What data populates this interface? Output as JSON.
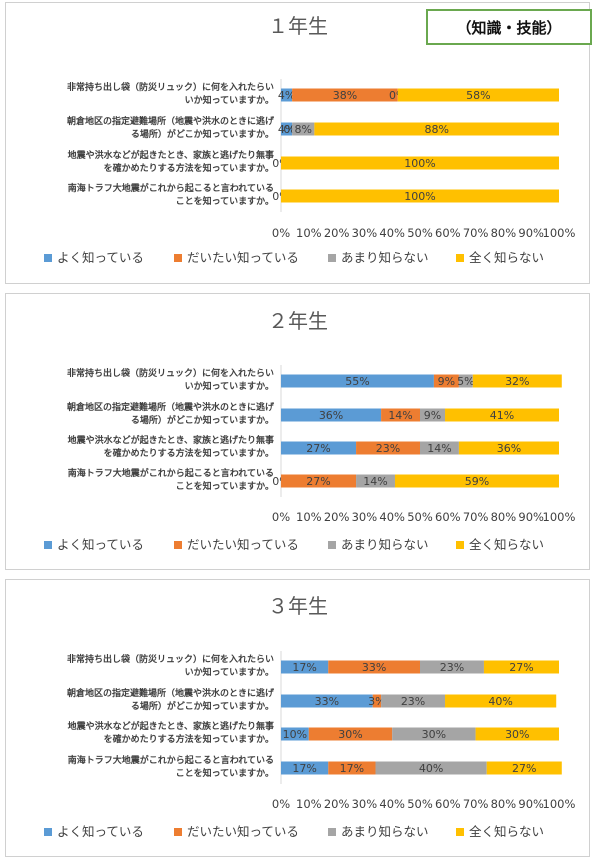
{
  "badge": "（知識・技能）",
  "chart_data": [
    {
      "type": "bar",
      "stacked": "percent",
      "orientation": "horizontal",
      "title": "１年生",
      "categories": [
        "非常持ち出し袋（防災リュック）に何を入れたらいか知っていますか。",
        "朝倉地区の指定避難場所（地震や洪水のときに逃げる場所）がどこか知っていますか。",
        "地震や洪水などが起きたとき、家族と逃げたり無事を確かめたりする方法を知っていますか。",
        "南海トラフ大地震がこれから起こると言われていることを知っていますか。"
      ],
      "series": [
        {
          "name": "よく知っている",
          "values": [
            4,
            4,
            0,
            0
          ],
          "labels": [
            "4%",
            "4%",
            "0%",
            "0%"
          ]
        },
        {
          "name": "だいたい知っている",
          "values": [
            38,
            0,
            0,
            0
          ],
          "labels": [
            "38%",
            "0%",
            "",
            ""
          ]
        },
        {
          "name": "あまり知らない",
          "values": [
            0,
            8,
            0,
            0
          ],
          "labels": [
            "0%",
            "8%",
            "",
            ""
          ]
        },
        {
          "name": "全く知らない",
          "values": [
            58,
            88,
            100,
            100
          ],
          "labels": [
            "58%",
            "88%",
            "100%",
            "100%"
          ]
        }
      ],
      "xticks": [
        "0%",
        "10%",
        "20%",
        "30%",
        "40%",
        "50%",
        "60%",
        "70%",
        "80%",
        "90%",
        "100%"
      ],
      "xlim": [
        0,
        100
      ]
    },
    {
      "type": "bar",
      "stacked": "percent",
      "orientation": "horizontal",
      "title": "２年生",
      "categories": [
        "非常持ち出し袋（防災リュック）に何を入れたらいか知っていますか。",
        "朝倉地区の指定避難場所（地震や洪水のときに逃げる場所）がどこか知っていますか。",
        "地震や洪水などが起きたとき、家族と逃げたり無事を確かめたりする方法を知っていますか。",
        "南海トラフ大地震がこれから起こると言われていることを知っていますか。"
      ],
      "series": [
        {
          "name": "よく知っている",
          "values": [
            55,
            36,
            27,
            0
          ],
          "labels": [
            "55%",
            "36%",
            "27%",
            "0%"
          ]
        },
        {
          "name": "だいたい知っている",
          "values": [
            9,
            14,
            23,
            27
          ],
          "labels": [
            "9%",
            "14%",
            "23%",
            "27%"
          ]
        },
        {
          "name": "あまり知らない",
          "values": [
            5,
            9,
            14,
            14
          ],
          "labels": [
            "5%",
            "9%",
            "14%",
            "14%"
          ]
        },
        {
          "name": "全く知らない",
          "values": [
            32,
            41,
            36,
            59
          ],
          "labels": [
            "32%",
            "41%",
            "36%",
            "59%"
          ]
        }
      ],
      "xticks": [
        "0%",
        "10%",
        "20%",
        "30%",
        "40%",
        "50%",
        "60%",
        "70%",
        "80%",
        "90%",
        "100%"
      ],
      "xlim": [
        0,
        100
      ]
    },
    {
      "type": "bar",
      "stacked": "percent",
      "orientation": "horizontal",
      "title": "３年生",
      "categories": [
        "非常持ち出し袋（防災リュック）に何を入れたらいか知っていますか。",
        "朝倉地区の指定避難場所（地震や洪水のときに逃げる場所）がどこか知っていますか。",
        "地震や洪水などが起きたとき、家族と逃げたり無事を確かめたりする方法を知っていますか。",
        "南海トラフ大地震がこれから起こると言われていることを知っていますか。"
      ],
      "series": [
        {
          "name": "よく知っている",
          "values": [
            17,
            33,
            10,
            17
          ],
          "labels": [
            "17%",
            "33%",
            "10%",
            "17%"
          ]
        },
        {
          "name": "だいたい知っている",
          "values": [
            33,
            3,
            30,
            17
          ],
          "labels": [
            "33%",
            "3%",
            "30%",
            "17%"
          ]
        },
        {
          "name": "あまり知らない",
          "values": [
            23,
            23,
            30,
            40
          ],
          "labels": [
            "23%",
            "23%",
            "30%",
            "40%"
          ]
        },
        {
          "name": "全く知らない",
          "values": [
            27,
            40,
            30,
            27
          ],
          "labels": [
            "27%",
            "40%",
            "30%",
            "27%"
          ]
        }
      ],
      "xticks": [
        "0%",
        "10%",
        "20%",
        "30%",
        "40%",
        "50%",
        "60%",
        "70%",
        "80%",
        "90%",
        "100%"
      ],
      "xlim": [
        0,
        100
      ]
    }
  ],
  "category_label_lines": [
    [
      "非常持ち出し袋（防災リュック）に何を入れたらい",
      "いか知っていますか。"
    ],
    [
      "朝倉地区の指定避難場所（地震や洪水のときに逃げ",
      "る場所）がどこか知っていますか。"
    ],
    [
      "地震や洪水などが起きたとき、家族と逃げたり無事",
      "を確かめたりする方法を知っていますか。"
    ],
    [
      "南海トラフ大地震がこれから起こると言われている",
      "ことを知っていますか。"
    ]
  ],
  "colors": {
    "よく知っている": "#5b9bd5",
    "だいたい知っている": "#ed7d31",
    "あまり知らない": "#a5a5a5",
    "全く知らない": "#ffc000",
    "axis": "#d9d9d9",
    "text": "#404040",
    "title": "#595959"
  }
}
